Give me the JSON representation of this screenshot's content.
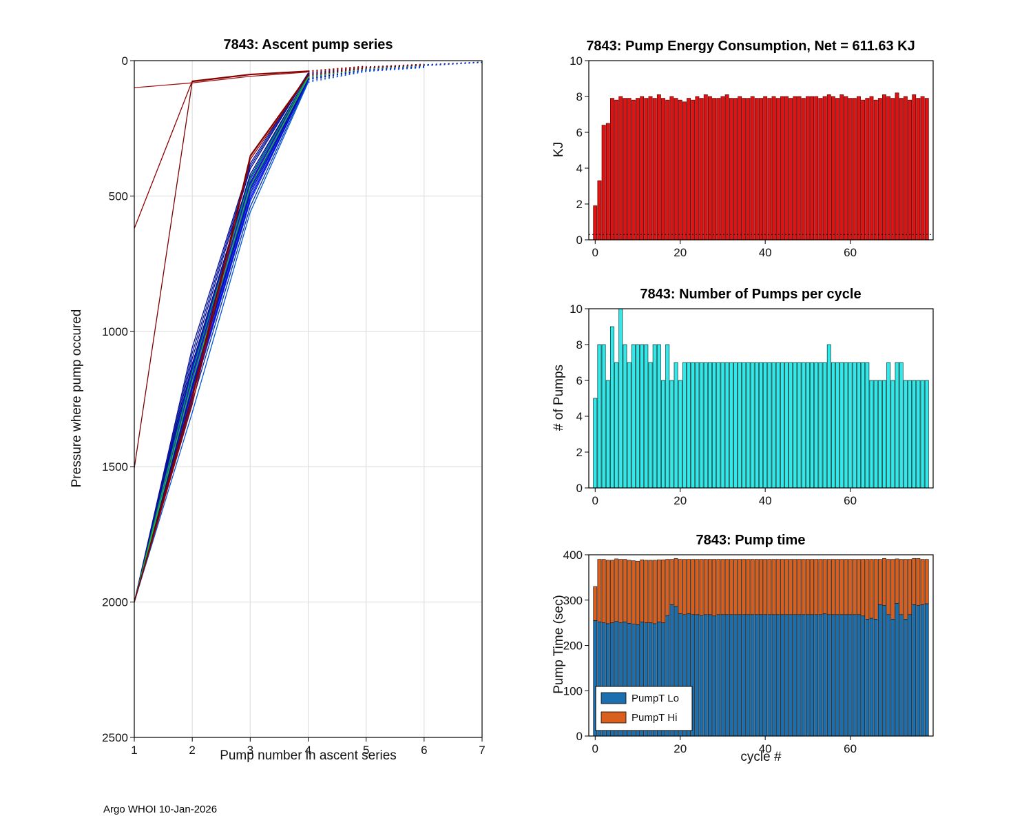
{
  "footer": "Argo WHOI 10-Jan-2026",
  "chart_data": [
    {
      "id": "ascent",
      "type": "line",
      "title": "7843: Ascent pump series",
      "xlabel": "Pump number in ascent series",
      "ylabel": "Pressure where pump occured",
      "xlim": [
        1,
        7
      ],
      "ylim": [
        0,
        2500
      ],
      "y_inverted": true,
      "grid": true,
      "xticks": [
        1,
        2,
        3,
        4,
        5,
        6,
        7
      ],
      "yticks": [
        0,
        500,
        1000,
        1500,
        2000,
        2500
      ],
      "dash_from": 4,
      "series": [
        {
          "color": "#00008b",
          "points": [
            [
              1,
              2000
            ],
            [
              2,
              1120
            ],
            [
              3,
              420
            ],
            [
              4,
              55
            ],
            [
              5,
              28
            ],
            [
              6,
              16
            ]
          ]
        },
        {
          "color": "#0000cd",
          "points": [
            [
              1,
              2000
            ],
            [
              2,
              1160
            ],
            [
              3,
              450
            ],
            [
              4,
              60
            ],
            [
              5,
              30
            ],
            [
              6,
              18
            ],
            [
              7,
              6
            ]
          ]
        },
        {
          "color": "#0000ff",
          "points": [
            [
              1,
              2000
            ],
            [
              2,
              1200
            ],
            [
              3,
              480
            ],
            [
              4,
              65
            ],
            [
              5,
              32
            ],
            [
              6,
              20
            ]
          ]
        },
        {
          "color": "#000099",
          "points": [
            [
              1,
              2000
            ],
            [
              2,
              1100
            ],
            [
              3,
              400
            ],
            [
              4,
              50
            ],
            [
              5,
              25
            ],
            [
              6,
              15
            ],
            [
              7,
              5
            ]
          ]
        },
        {
          "color": "#1133dd",
          "points": [
            [
              1,
              2000
            ],
            [
              2,
              1240
            ],
            [
              3,
              520
            ],
            [
              4,
              70
            ],
            [
              5,
              35
            ],
            [
              6,
              22
            ]
          ]
        },
        {
          "color": "#0000b3",
          "points": [
            [
              1,
              2000
            ],
            [
              2,
              1180
            ],
            [
              3,
              470
            ],
            [
              4,
              62
            ],
            [
              5,
              30
            ],
            [
              6,
              18
            ]
          ]
        },
        {
          "color": "#0d1acc",
          "points": [
            [
              1,
              2000
            ],
            [
              2,
              1140
            ],
            [
              3,
              440
            ],
            [
              4,
              58
            ],
            [
              5,
              28
            ],
            [
              6,
              17
            ],
            [
              7,
              6
            ]
          ]
        },
        {
          "color": "#2244ee",
          "points": [
            [
              1,
              2000
            ],
            [
              2,
              1220
            ],
            [
              3,
              500
            ],
            [
              4,
              68
            ],
            [
              5,
              33
            ],
            [
              6,
              20
            ]
          ]
        },
        {
          "color": "#002299",
          "points": [
            [
              1,
              2000
            ],
            [
              2,
              1080
            ],
            [
              3,
              390
            ],
            [
              4,
              48
            ],
            [
              5,
              24
            ],
            [
              6,
              14
            ]
          ]
        },
        {
          "color": "#0033aa",
          "points": [
            [
              1,
              2000
            ],
            [
              2,
              1260
            ],
            [
              3,
              540
            ],
            [
              4,
              75
            ],
            [
              5,
              38
            ],
            [
              6,
              24
            ]
          ]
        },
        {
          "color": "#1a1ab3",
          "points": [
            [
              1,
              2000
            ],
            [
              2,
              1150
            ],
            [
              3,
              455
            ],
            [
              4,
              60
            ],
            [
              5,
              29
            ],
            [
              6,
              18
            ]
          ]
        },
        {
          "color": "#0044cc",
          "points": [
            [
              1,
              2000
            ],
            [
              2,
              1190
            ],
            [
              3,
              475
            ],
            [
              4,
              63
            ],
            [
              5,
              31
            ],
            [
              6,
              19
            ],
            [
              7,
              7
            ]
          ]
        },
        {
          "color": "#0022bb",
          "points": [
            [
              1,
              2000
            ],
            [
              2,
              1130
            ],
            [
              3,
              430
            ],
            [
              4,
              56
            ],
            [
              5,
              27
            ],
            [
              6,
              16
            ]
          ]
        },
        {
          "color": "#000f80",
          "points": [
            [
              1,
              2000
            ],
            [
              2,
              1210
            ],
            [
              3,
              490
            ],
            [
              4,
              66
            ],
            [
              5,
              32
            ],
            [
              6,
              20
            ]
          ]
        },
        {
          "color": "#2a2ad9",
          "points": [
            [
              1,
              2000
            ],
            [
              2,
              1170
            ],
            [
              3,
              460
            ],
            [
              4,
              61
            ],
            [
              5,
              30
            ],
            [
              6,
              18
            ]
          ]
        },
        {
          "color": "#0055dd",
          "points": [
            [
              1,
              2000
            ],
            [
              2,
              1300
            ],
            [
              3,
              560
            ],
            [
              4,
              80
            ],
            [
              5,
              40
            ],
            [
              6,
              26
            ]
          ]
        },
        {
          "color": "#0a0a99",
          "points": [
            [
              1,
              2000
            ],
            [
              2,
              1060
            ],
            [
              3,
              380
            ],
            [
              4,
              46
            ],
            [
              5,
              23
            ],
            [
              6,
              13
            ]
          ]
        },
        {
          "color": "#0000e6",
          "points": [
            [
              1,
              2000
            ],
            [
              2,
              1230
            ],
            [
              3,
              510
            ],
            [
              4,
              69
            ],
            [
              5,
              34
            ],
            [
              6,
              21
            ]
          ]
        },
        {
          "color": "#00a550",
          "points": [
            [
              1,
              2000
            ],
            [
              2,
              1150
            ],
            [
              3,
              435
            ],
            [
              4,
              58
            ],
            [
              5,
              29
            ],
            [
              6,
              17
            ]
          ]
        },
        {
          "color": "#2eb82e",
          "points": [
            [
              1,
              2000
            ],
            [
              2,
              1185
            ],
            [
              3,
              465
            ],
            [
              4,
              63
            ],
            [
              5,
              31
            ],
            [
              6,
              19
            ]
          ]
        },
        {
          "color": "#8b0000",
          "points": [
            [
              1,
              2000
            ],
            [
              2,
              1250
            ],
            [
              3,
              350
            ],
            [
              4,
              52
            ],
            [
              5,
              26
            ],
            [
              6,
              16
            ]
          ]
        },
        {
          "color": "#990000",
          "points": [
            [
              1,
              2000
            ],
            [
              2,
              1270
            ],
            [
              3,
              365
            ],
            [
              4,
              55
            ],
            [
              5,
              28
            ]
          ]
        },
        {
          "color": "#7a0000",
          "points": [
            [
              1,
              1505
            ],
            [
              2,
              78
            ],
            [
              3,
              52
            ],
            [
              4,
              40
            ],
            [
              5,
              22
            ]
          ]
        },
        {
          "color": "#8b0000",
          "points": [
            [
              1,
              620
            ],
            [
              2,
              75
            ],
            [
              3,
              50
            ],
            [
              4,
              38
            ],
            [
              5,
              20
            ]
          ]
        },
        {
          "color": "#a31515",
          "points": [
            [
              1,
              100
            ],
            [
              2,
              82
            ],
            [
              3,
              58
            ],
            [
              4,
              42
            ],
            [
              5,
              24
            ],
            [
              6,
              14
            ]
          ]
        },
        {
          "color": "#7a0000",
          "points": [
            [
              1,
              2000
            ],
            [
              2,
              1235
            ],
            [
              3,
              355
            ],
            [
              4,
              53
            ],
            [
              5,
              27
            ],
            [
              6,
              17
            ]
          ]
        }
      ]
    },
    {
      "id": "energy",
      "type": "bar",
      "title": "7843: Pump Energy Consumption,  Net = 611.63 KJ",
      "ylabel": "KJ",
      "bar_color": "#dd1414",
      "edge_color": "#5f0000",
      "xlim": [
        -1.5,
        79.5
      ],
      "ylim": [
        0,
        10
      ],
      "xticks": [
        0,
        20,
        40,
        60
      ],
      "yticks": [
        0,
        2,
        4,
        6,
        8,
        10
      ],
      "threshold_line": 0.3,
      "values": [
        1.9,
        3.3,
        6.4,
        6.5,
        7.9,
        7.8,
        8.0,
        7.9,
        7.9,
        7.8,
        7.9,
        8.0,
        7.9,
        8.0,
        7.9,
        8.1,
        7.9,
        7.8,
        8.0,
        7.9,
        7.8,
        7.7,
        7.9,
        7.8,
        8.0,
        7.9,
        8.1,
        8.0,
        7.9,
        7.9,
        8.0,
        8.1,
        7.9,
        7.9,
        8.0,
        7.9,
        7.9,
        8.0,
        7.9,
        7.9,
        8.0,
        7.9,
        8.0,
        7.9,
        8.0,
        8.0,
        7.9,
        8.0,
        8.0,
        7.9,
        8.0,
        8.0,
        8.0,
        7.9,
        8.0,
        8.1,
        8.0,
        7.9,
        8.1,
        8.0,
        7.9,
        7.9,
        8.0,
        7.8,
        7.9,
        8.0,
        7.8,
        7.9,
        8.1,
        8.0,
        7.9,
        8.2,
        7.9,
        8.0,
        7.8,
        8.1,
        7.9,
        8.0,
        7.9
      ]
    },
    {
      "id": "pumps",
      "type": "bar",
      "title": "7843: Number of Pumps per cycle",
      "ylabel": "# of Pumps",
      "bar_color": "#33e8e8",
      "edge_color": "#003333",
      "xlim": [
        -1.5,
        79.5
      ],
      "ylim": [
        0,
        10
      ],
      "xticks": [
        0,
        20,
        40,
        60
      ],
      "yticks": [
        0,
        2,
        4,
        6,
        8,
        10
      ],
      "values": [
        5,
        8,
        8,
        6,
        9,
        7,
        10,
        8,
        7,
        8,
        8,
        8,
        8,
        7,
        8,
        8,
        6,
        8,
        6,
        7,
        6,
        7,
        7,
        7,
        7,
        7,
        7,
        7,
        7,
        7,
        7,
        7,
        7,
        7,
        7,
        7,
        7,
        7,
        7,
        7,
        7,
        7,
        7,
        7,
        7,
        7,
        7,
        7,
        7,
        7,
        7,
        7,
        7,
        7,
        7,
        8,
        7,
        7,
        7,
        7,
        7,
        7,
        7,
        7,
        7,
        6,
        6,
        6,
        6,
        7,
        6,
        7,
        7,
        6,
        6,
        6,
        6,
        6,
        6
      ]
    },
    {
      "id": "pumptime",
      "type": "stacked-bar",
      "title": "7843: Pump time",
      "xlabel": "cycle #",
      "ylabel": "Pump Time (sec)",
      "edge_color": "#111111",
      "xlim": [
        -1.5,
        79.5
      ],
      "ylim": [
        0,
        400
      ],
      "xticks": [
        0,
        20,
        40,
        60
      ],
      "yticks": [
        0,
        100,
        200,
        300,
        400
      ],
      "legend": [
        "PumpT Lo",
        "PumpT Hi"
      ],
      "series": [
        {
          "name": "PumpT Lo",
          "color": "#1b6fae",
          "values": [
            255,
            252,
            250,
            248,
            250,
            253,
            250,
            252,
            249,
            247,
            246,
            252,
            250,
            250,
            248,
            252,
            250,
            266,
            290,
            286,
            270,
            268,
            270,
            268,
            268,
            266,
            268,
            268,
            265,
            268,
            268,
            268,
            268,
            268,
            268,
            268,
            268,
            268,
            268,
            268,
            268,
            268,
            268,
            268,
            268,
            268,
            268,
            268,
            268,
            268,
            268,
            268,
            268,
            268,
            270,
            268,
            268,
            268,
            268,
            268,
            268,
            268,
            268,
            265,
            258,
            260,
            258,
            290,
            288,
            268,
            258,
            293,
            268,
            258,
            268,
            290,
            288,
            290,
            292
          ]
        },
        {
          "name": "PumpT Hi",
          "color": "#d95f1e",
          "values": [
            75,
            138,
            140,
            140,
            138,
            138,
            140,
            138,
            139,
            140,
            140,
            137,
            138,
            138,
            140,
            137,
            139,
            124,
            100,
            106,
            120,
            122,
            120,
            122,
            122,
            124,
            122,
            122,
            125,
            122,
            122,
            122,
            122,
            122,
            122,
            122,
            122,
            122,
            122,
            122,
            122,
            122,
            122,
            122,
            122,
            122,
            122,
            122,
            122,
            122,
            122,
            122,
            122,
            122,
            120,
            122,
            122,
            122,
            122,
            122,
            122,
            122,
            122,
            125,
            132,
            130,
            132,
            100,
            104,
            122,
            132,
            98,
            122,
            132,
            122,
            102,
            104,
            100,
            98
          ]
        }
      ]
    }
  ]
}
